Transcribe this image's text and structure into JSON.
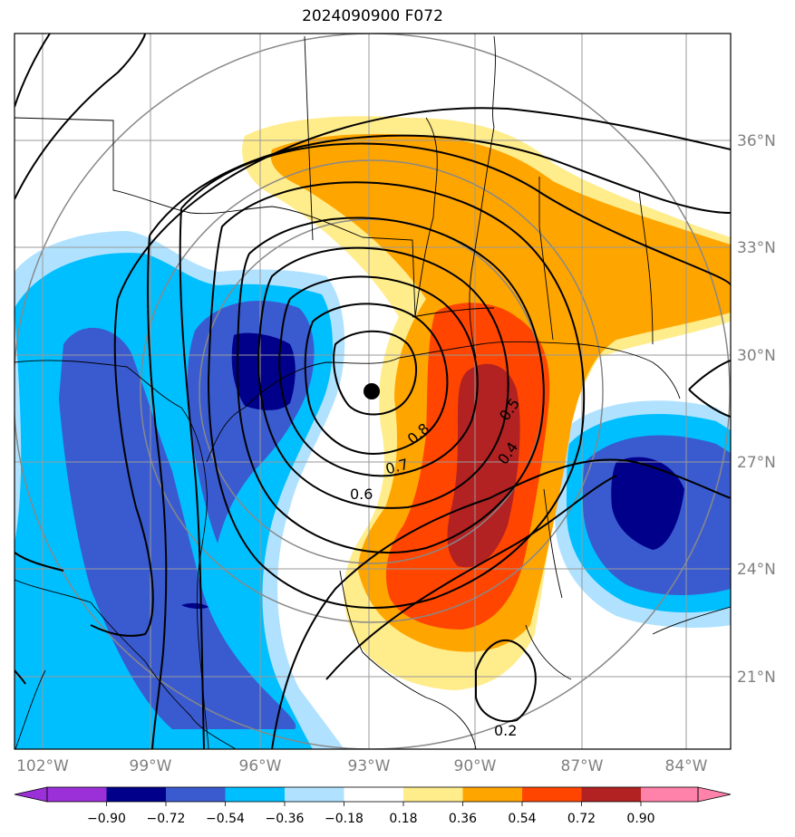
{
  "title": "2024090900 F072",
  "map": {
    "lon_labels": [
      "102°W",
      "99°W",
      "96°W",
      "93°W",
      "90°W",
      "87°W",
      "84°W"
    ],
    "lat_labels": [
      "36°N",
      "33°N",
      "30°N",
      "27°N",
      "24°N",
      "21°N"
    ],
    "storm_center": "filled black dot"
  },
  "contour_labels": [
    "0.8",
    "0.7",
    "0.6",
    "0.5",
    "0.4",
    "0.2"
  ],
  "colorbar": {
    "ticks": [
      "−0.90",
      "−0.72",
      "−0.54",
      "−0.36",
      "−0.18",
      "0.18",
      "0.36",
      "0.54",
      "0.72",
      "0.90"
    ],
    "colors": [
      "#9b30d9",
      "#00008b",
      "#3a5bd0",
      "#00bfff",
      "#b0e2ff",
      "#ffffff",
      "#ffec8b",
      "#ffa500",
      "#ff4500",
      "#b22222",
      "#ff82ab"
    ]
  }
}
